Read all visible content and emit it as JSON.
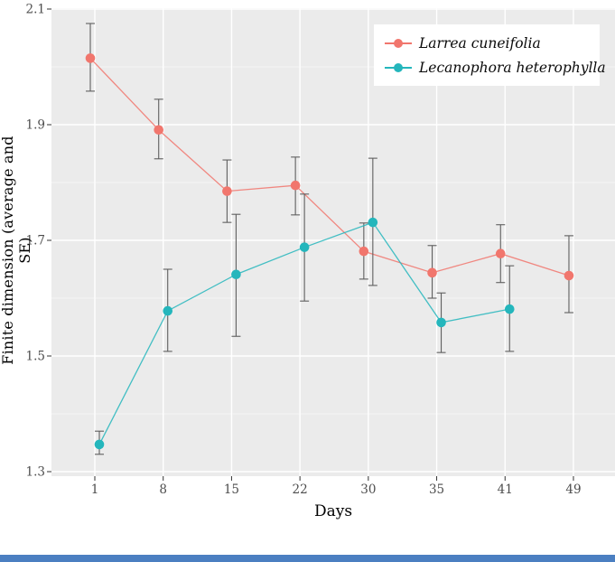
{
  "figure": {
    "background": "#ffffff",
    "panel_color": "#ebebeb",
    "grid_major_color": "#ffffff",
    "grid_minor_color": "#f4f4f4",
    "errorbar_color": "#5f5f5f",
    "tick_mark_color": "#333333",
    "tick_label_color": "#4d4d4d",
    "axis_title_color": "#000000",
    "legend_background": "#ffffff",
    "bottom_bar_color": "#4b7fc1"
  },
  "chart_data": {
    "type": "line",
    "title": "",
    "xlabel": "Days",
    "ylabel": "Finite dimension (average and SE)",
    "categories": [
      1,
      8,
      15,
      22,
      30,
      35,
      41,
      49
    ],
    "x_tick_labels": [
      "1",
      "8",
      "15",
      "22",
      "30",
      "35",
      "41",
      "49"
    ],
    "y_ticks": [
      1.3,
      1.5,
      1.7,
      1.9,
      2.1
    ],
    "y_minor_gridlines": [
      1.4,
      1.6,
      1.8,
      2.0
    ],
    "ylim": [
      1.3,
      2.1
    ],
    "grid": "ggplot-style: gray panel, white major gridlines horizontal and vertical, faint minor horizontal gridlines",
    "legend_position": "top-right-inside",
    "error_bars": "standard error, gray with caps",
    "series": [
      {
        "name": "Larrea cuneifolia",
        "color": "#f1766d",
        "values": [
          2.015,
          1.891,
          1.785,
          1.795,
          1.681,
          1.644,
          1.677,
          1.639
        ],
        "err_low": [
          1.958,
          1.841,
          1.731,
          1.744,
          1.633,
          1.6,
          1.627,
          1.575
        ],
        "err_high": [
          2.075,
          1.944,
          1.839,
          1.844,
          1.73,
          1.691,
          1.727,
          1.708
        ]
      },
      {
        "name": "Lecanophora heterophylla",
        "color": "#24b6bc",
        "values": [
          1.347,
          1.578,
          1.641,
          1.688,
          1.731,
          1.558,
          1.581,
          null
        ],
        "err_low": [
          1.33,
          1.508,
          1.534,
          1.595,
          1.622,
          1.506,
          1.508,
          null
        ],
        "err_high": [
          1.37,
          1.65,
          1.745,
          1.78,
          1.842,
          1.609,
          1.656,
          null
        ]
      }
    ]
  }
}
